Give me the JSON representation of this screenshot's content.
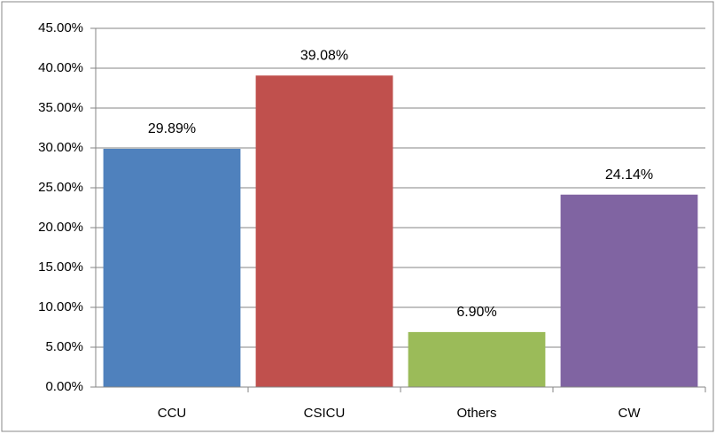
{
  "chart_data": {
    "type": "bar",
    "categories": [
      "CCU",
      "CSICU",
      "Others",
      "CW"
    ],
    "values": [
      29.89,
      39.08,
      6.9,
      24.14
    ],
    "value_labels": [
      "29.89%",
      "39.08%",
      "6.90%",
      "24.14%"
    ],
    "colors": [
      "#4f81bd",
      "#c0504d",
      "#9bbb59",
      "#8064a2"
    ],
    "ylim": [
      0,
      45
    ],
    "yticks": [
      {
        "value": 0,
        "label": "0.00%"
      },
      {
        "value": 5,
        "label": "5.00%"
      },
      {
        "value": 10,
        "label": "10.00%"
      },
      {
        "value": 15,
        "label": "15.00%"
      },
      {
        "value": 20,
        "label": "20.00%"
      },
      {
        "value": 25,
        "label": "25.00%"
      },
      {
        "value": 30,
        "label": "30.00%"
      },
      {
        "value": 35,
        "label": "35.00%"
      },
      {
        "value": 40,
        "label": "40.00%"
      },
      {
        "value": 45,
        "label": "45.00%"
      }
    ],
    "grid": true
  }
}
